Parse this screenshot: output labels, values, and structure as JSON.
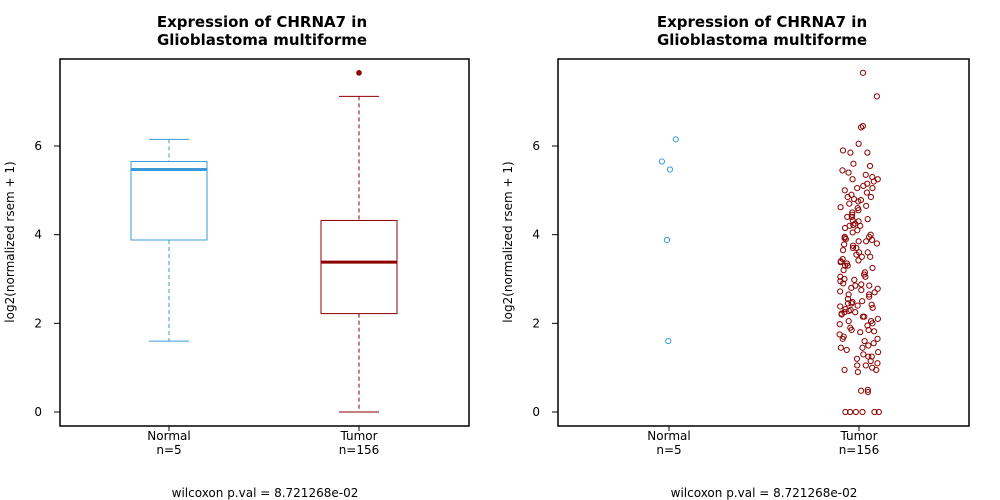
{
  "chart_data": [
    {
      "type": "box",
      "title_line1": "Expression of CHRNA7 in",
      "title_line2": "Glioblastoma multiforme",
      "ylabel": "log2(normalized rsem + 1)",
      "ylim": [
        0,
        7.7
      ],
      "yticks": [
        0,
        2,
        4,
        6
      ],
      "footer": "wilcoxon p.val = 8.721268e-02",
      "colors": {
        "Normal": "#3a9ad9",
        "Tumor": "#8b0000"
      },
      "groups": [
        {
          "name": "Normal",
          "n_label": "n=5",
          "min": 1.6,
          "q1": 3.88,
          "median": 5.47,
          "q3": 5.65,
          "max": 6.15,
          "outliers": []
        },
        {
          "name": "Tumor",
          "n_label": "n=156",
          "min": 0.0,
          "q1": 2.22,
          "median": 3.38,
          "q3": 4.32,
          "max": 7.12,
          "outliers": [
            7.65
          ]
        }
      ]
    },
    {
      "type": "scatter",
      "title_line1": "Expression of CHRNA7 in",
      "title_line2": "Glioblastoma multiforme",
      "ylabel": "log2(normalized rsem + 1)",
      "ylim": [
        0,
        7.7
      ],
      "yticks": [
        0,
        2,
        4,
        6
      ],
      "footer": "wilcoxon p.val = 8.721268e-02",
      "colors": {
        "Normal": "#3a9ad9",
        "Tumor": "#8b0000"
      },
      "groups": [
        {
          "name": "Normal",
          "n_label": "n=5",
          "values": [
            6.15,
            5.65,
            5.47,
            3.88,
            1.6
          ]
        },
        {
          "name": "Tumor",
          "n_label": "n=156",
          "values": [
            7.65,
            7.12,
            6.42,
            6.45,
            6.05,
            5.9,
            5.85,
            5.85,
            5.6,
            5.55,
            5.45,
            5.4,
            5.35,
            5.3,
            5.25,
            5.2,
            5.15,
            5.1,
            5.05,
            5.0,
            4.95,
            4.9,
            4.85,
            4.8,
            4.78,
            4.75,
            4.7,
            4.62,
            4.55,
            4.5,
            4.45,
            4.4,
            4.35,
            4.32,
            4.3,
            4.25,
            4.22,
            4.2,
            4.15,
            4.1,
            4.05,
            4.0,
            3.95,
            3.92,
            3.9,
            3.88,
            3.85,
            3.8,
            3.78,
            3.75,
            3.7,
            3.65,
            3.6,
            3.55,
            3.5,
            3.45,
            3.42,
            3.4,
            3.38,
            3.35,
            3.3,
            3.25,
            3.2,
            3.15,
            3.1,
            3.05,
            3.0,
            2.98,
            2.95,
            2.9,
            2.88,
            2.85,
            2.8,
            2.78,
            2.75,
            2.72,
            2.7,
            2.65,
            2.6,
            2.55,
            2.5,
            2.48,
            2.45,
            2.42,
            2.4,
            2.38,
            2.35,
            2.32,
            2.3,
            2.28,
            2.25,
            2.22,
            2.2,
            2.15,
            2.1,
            2.05,
            2.0,
            1.98,
            1.95,
            1.9,
            1.85,
            1.82,
            1.8,
            1.75,
            1.7,
            1.65,
            1.6,
            1.55,
            1.5,
            1.45,
            1.4,
            1.35,
            1.3,
            1.25,
            1.2,
            1.15,
            1.1,
            1.05,
            1.0,
            0.95,
            0.9,
            0.5,
            0.48,
            0.45,
            0.0,
            0.0,
            0.0,
            0.0,
            0.0,
            0.0,
            4.6,
            4.4,
            4.2,
            3.95,
            3.7,
            3.5,
            3.3,
            3.05,
            2.85,
            2.65,
            2.45,
            2.25,
            2.05,
            1.85,
            1.65,
            1.45,
            1.25,
            1.05,
            0.95,
            5.25,
            5.05,
            4.85,
            4.65,
            3.85,
            3.6,
            2.15
          ]
        }
      ]
    }
  ]
}
